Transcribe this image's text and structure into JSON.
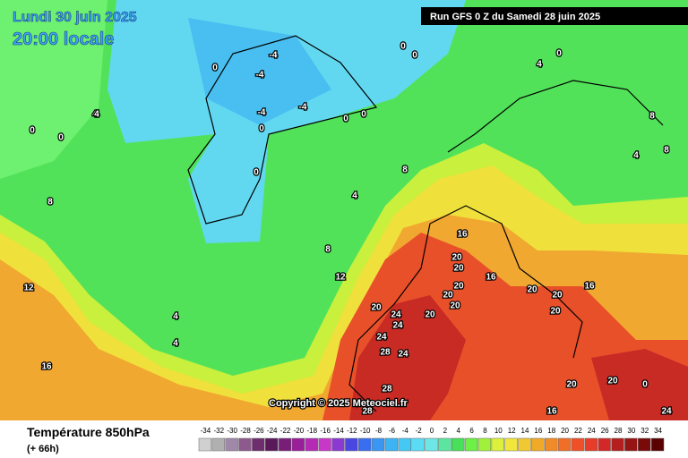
{
  "header": {
    "date": "Lundi 30 juin 2025",
    "time": "20:00 locale"
  },
  "run": "Run GFS 0 Z du Samedi 28 juin 2025",
  "copyright": "Copyright © 2025 Meteociel.fr",
  "footer": {
    "title": "Température 850hPa",
    "lead": "(+ 66h)"
  },
  "scale": {
    "values": [
      -34,
      -32,
      -30,
      -28,
      -26,
      -24,
      -22,
      -20,
      -18,
      -16,
      -14,
      -12,
      -10,
      -8,
      -6,
      -4,
      -2,
      0,
      2,
      4,
      6,
      8,
      10,
      12,
      14,
      16,
      18,
      20,
      22,
      24,
      26,
      28,
      30,
      32,
      34
    ],
    "colors": [
      "#d0d0d0",
      "#b0b0b0",
      "#a088a8",
      "#8c5a8c",
      "#6e2e6e",
      "#5a1a5a",
      "#781e78",
      "#9a1e9a",
      "#b42ab4",
      "#c838c8",
      "#8a3ad0",
      "#4a46e0",
      "#3a6ef0",
      "#3a96f0",
      "#3cb4f4",
      "#46c8f4",
      "#5adcf4",
      "#6ee6e6",
      "#5ae6a0",
      "#46e05a",
      "#6ef046",
      "#a0f03c",
      "#dcf03c",
      "#f0e63c",
      "#f0c832",
      "#f0aa28",
      "#f08c28",
      "#f06e28",
      "#f05028",
      "#e63c28",
      "#d22828",
      "#b41e1e",
      "#961414",
      "#780a0a",
      "#5a0000"
    ]
  },
  "contour_labels": [
    0,
    0,
    -4,
    -4,
    0,
    -4,
    -4,
    0,
    0,
    0,
    4,
    0,
    0,
    4,
    8,
    0,
    4,
    8,
    8,
    4,
    0,
    8,
    4,
    8,
    12,
    12,
    4,
    4,
    16,
    16,
    20,
    20,
    20,
    20,
    20,
    16,
    20,
    20,
    16,
    20,
    24,
    24,
    20,
    24,
    28,
    24,
    28,
    28,
    20,
    20,
    20,
    0,
    16,
    24
  ]
}
